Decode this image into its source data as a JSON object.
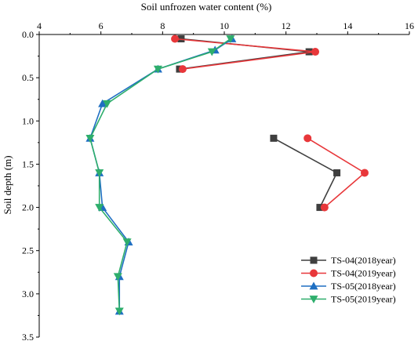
{
  "chart_data": {
    "type": "line",
    "xlabel": "Soil unfrozen water content (%)",
    "ylabel": "Soil depth (m)",
    "xlim": [
      4,
      16
    ],
    "ylim": [
      0,
      3.5
    ],
    "x_axis_position": "top",
    "y_inverted": true,
    "x_ticks": [
      4,
      6,
      8,
      10,
      12,
      14,
      16
    ],
    "y_ticks": [
      "0.0",
      "0.5",
      "1.0",
      "1.5",
      "2.0",
      "2.5",
      "3.0",
      "3.5"
    ],
    "grid": false,
    "legend_position": "bottom-right",
    "series": [
      {
        "name": "TS-04(2018year)",
        "color": "#3f3f3f",
        "marker": "square",
        "segments": [
          [
            [
              8.6,
              0.05
            ],
            [
              12.75,
              0.2
            ],
            [
              8.55,
              0.4
            ]
          ],
          [
            [
              11.6,
              1.2
            ],
            [
              13.65,
              1.6
            ],
            [
              13.1,
              2.0
            ]
          ]
        ]
      },
      {
        "name": "TS-04(2019year)",
        "color": "#e8373a",
        "marker": "circle",
        "segments": [
          [
            [
              8.4,
              0.05
            ],
            [
              12.95,
              0.2
            ],
            [
              8.65,
              0.4
            ]
          ],
          [
            [
              12.7,
              1.2
            ],
            [
              14.55,
              1.6
            ],
            [
              13.25,
              2.0
            ]
          ]
        ]
      },
      {
        "name": "TS-05(2018year)",
        "color": "#1f6fc2",
        "marker": "triangle-up",
        "segments": [
          [
            [
              10.25,
              0.05
            ],
            [
              9.7,
              0.18
            ],
            [
              7.85,
              0.4
            ],
            [
              6.05,
              0.8
            ],
            [
              5.65,
              1.2
            ],
            [
              5.95,
              1.6
            ],
            [
              6.05,
              2.0
            ],
            [
              6.9,
              2.4
            ],
            [
              6.6,
              2.8
            ],
            [
              6.6,
              3.2
            ]
          ]
        ]
      },
      {
        "name": "TS-05(2019year)",
        "color": "#2eae6c",
        "marker": "triangle-down",
        "segments": [
          [
            [
              10.2,
              0.05
            ],
            [
              9.6,
              0.2
            ],
            [
              7.85,
              0.4
            ],
            [
              6.2,
              0.8
            ],
            [
              5.65,
              1.2
            ],
            [
              5.95,
              1.6
            ],
            [
              5.95,
              2.0
            ],
            [
              6.85,
              2.4
            ],
            [
              6.55,
              2.8
            ],
            [
              6.6,
              3.2
            ]
          ]
        ]
      }
    ]
  }
}
